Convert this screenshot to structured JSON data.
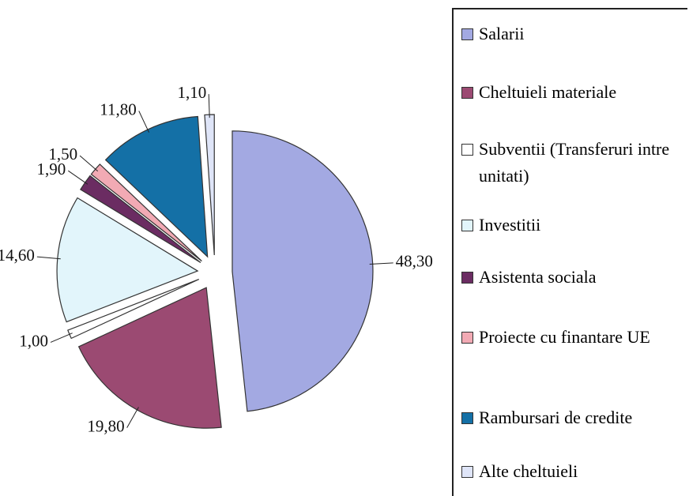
{
  "chart_data": {
    "type": "pie",
    "categories": [
      "Salarii",
      "Cheltuieli materiale",
      "Subventii (Transferuri intre unitati)",
      "Investitii",
      "Asistenta sociala",
      "Proiecte cu finantare UE",
      "Rambursari de credite",
      "Alte cheltuieli"
    ],
    "values": [
      48.3,
      19.8,
      1.0,
      14.6,
      1.9,
      1.5,
      11.8,
      1.1
    ],
    "value_labels": [
      "48,30",
      "19,80",
      "1,00",
      "14,60",
      "1,90",
      "1,50",
      "11,80",
      "1,10"
    ],
    "colors": [
      "#a3a9e2",
      "#9b4a72",
      "#ffffff",
      "#e2f5fb",
      "#6b2c62",
      "#f2aab4",
      "#1470a6",
      "#dfe5f8"
    ],
    "legend": "right"
  }
}
